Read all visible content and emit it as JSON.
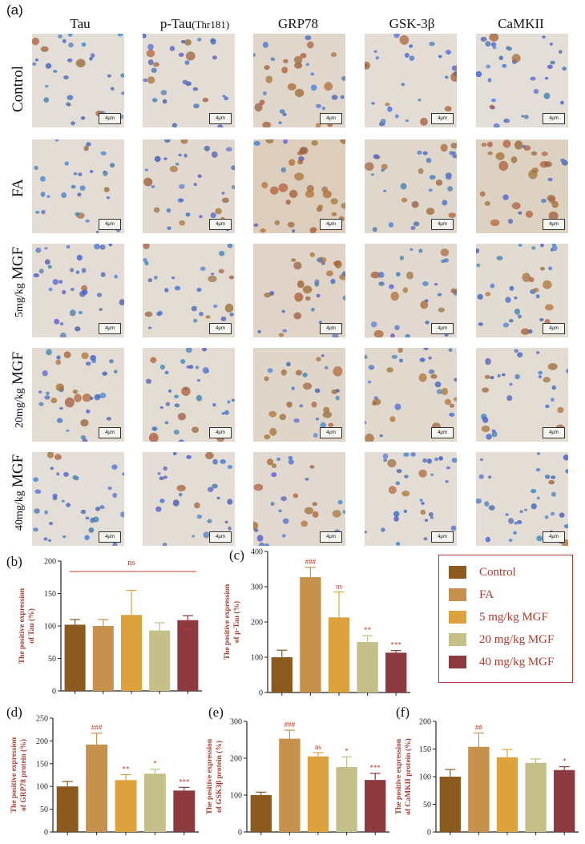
{
  "panel_a_label": "(a)",
  "columns": [
    {
      "main": "Tau",
      "sub": ""
    },
    {
      "main": "p-Tau",
      "sub": "(Thr181)"
    },
    {
      "main": "GRP78",
      "sub": ""
    },
    {
      "main": "GSK-3β",
      "sub": ""
    },
    {
      "main": "CaMKII",
      "sub": ""
    }
  ],
  "rows": [
    {
      "dose": "",
      "group": "Control"
    },
    {
      "dose": "",
      "group": "FA"
    },
    {
      "dose": "5mg/kg",
      "group": "MGF"
    },
    {
      "dose": "20mg/kg",
      "group": "MGF"
    },
    {
      "dose": "40mg/kg",
      "group": "MGF"
    }
  ],
  "scale_bar_label": "4μm",
  "colors": {
    "Control": "#8b5a1e",
    "FA": "#c6904d",
    "5 mg/kg MGF": "#dda23e",
    "20 mg/kg MGF": "#c5bf89",
    "40 mg/kg MGF": "#8c3a40",
    "annotation": "#c0392b",
    "axis_label": "#b03a2e"
  },
  "legend": {
    "entries": [
      "Control",
      "FA",
      "5 mg/kg MGF",
      "20 mg/kg MGF",
      "40 mg/kg MGF"
    ]
  },
  "chart_data": [
    {
      "panel": "(b)",
      "type": "bar",
      "categories": [
        "Control",
        "FA",
        "5 mg/kg MGF",
        "20 mg/kg MGF",
        "40 mg/kg MGF"
      ],
      "values": [
        102,
        100,
        117,
        93,
        109
      ],
      "errors": [
        8,
        10,
        38,
        12,
        7
      ],
      "annotations": [
        "",
        "",
        "",
        "",
        "***"
      ],
      "group_annotation": "ns",
      "ylabel": [
        "The positive expression",
        "of Tau (%)"
      ],
      "ylim": [
        0,
        200
      ],
      "yticks": [
        0,
        50,
        100,
        150,
        200
      ]
    },
    {
      "panel": "(c)",
      "type": "bar",
      "categories": [
        "Control",
        "FA",
        "5 mg/kg MGF",
        "20 mg/kg MGF",
        "40 mg/kg MGF"
      ],
      "values": [
        100,
        327,
        213,
        143,
        113
      ],
      "errors": [
        20,
        28,
        72,
        18,
        6
      ],
      "annotations": [
        "",
        "###",
        "ns",
        "**",
        "***"
      ],
      "ylabel": [
        "The positive expression",
        "of p-Tau (%)"
      ],
      "ylim": [
        0,
        400
      ],
      "yticks": [
        0,
        100,
        200,
        300,
        400
      ]
    },
    {
      "panel": "(d)",
      "type": "bar",
      "categories": [
        "Control",
        "FA",
        "5 mg/kg MGF",
        "20 mg/kg MGF",
        "40 mg/kg MGF"
      ],
      "values": [
        100,
        192,
        114,
        128,
        91
      ],
      "errors": [
        11,
        25,
        12,
        10,
        7
      ],
      "annotations": [
        "",
        "###",
        "**",
        "*",
        "***"
      ],
      "ylabel": [
        "The positive expression",
        "of GRP78 protein (%)"
      ],
      "ylim": [
        0,
        250
      ],
      "yticks": [
        0,
        50,
        100,
        150,
        200,
        250
      ]
    },
    {
      "panel": "(e)",
      "type": "bar",
      "categories": [
        "Control",
        "FA",
        "5 mg/kg MGF",
        "20 mg/kg MGF",
        "40 mg/kg MGF"
      ],
      "values": [
        100,
        253,
        205,
        176,
        141
      ],
      "errors": [
        8,
        23,
        10,
        28,
        18
      ],
      "annotations": [
        "",
        "###",
        "ns",
        "*",
        "***"
      ],
      "ylabel": [
        "The positive expression",
        "of GSK3β protein (%)"
      ],
      "ylim": [
        0,
        300
      ],
      "yticks": [
        0,
        100,
        200,
        300
      ]
    },
    {
      "panel": "(f)",
      "type": "bar",
      "categories": [
        "Control",
        "FA",
        "5 mg/kg MGF",
        "20 mg/kg MGF",
        "40 mg/kg MGF"
      ],
      "values": [
        100,
        154,
        135,
        125,
        112
      ],
      "errors": [
        13,
        25,
        14,
        7,
        6
      ],
      "annotations": [
        "",
        "##",
        "",
        "",
        "*"
      ],
      "ylabel": [
        "The positive expression",
        "of CaMKII protein (%)"
      ],
      "ylim": [
        0,
        200
      ],
      "yticks": [
        0,
        50,
        100,
        150,
        200
      ]
    }
  ]
}
